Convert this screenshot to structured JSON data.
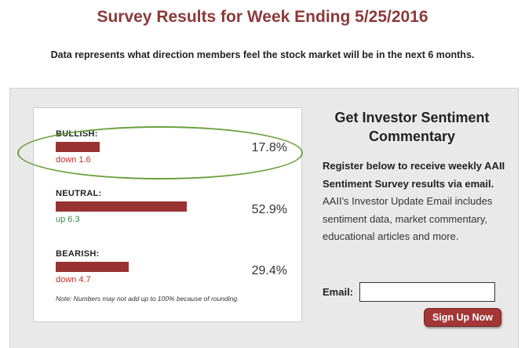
{
  "header": {
    "title": "Survey Results for Week Ending 5/25/2016",
    "subtitle": "Data represents what direction members feel the stock market will be in the next 6 months."
  },
  "results": [
    {
      "label": "BULLISH:",
      "percent_text": "17.8%",
      "value": 17.8,
      "change": "down 1.6",
      "direction": "down"
    },
    {
      "label": "NEUTRAL:",
      "percent_text": "52.9%",
      "value": 52.9,
      "change": "up 6.3",
      "direction": "up"
    },
    {
      "label": "BEARISH:",
      "percent_text": "29.4%",
      "value": 29.4,
      "change": "down 4.7",
      "direction": "down"
    }
  ],
  "note": "Note: Numbers may not add up to 100% because of rounding.",
  "sidebar": {
    "title": "Get Investor Sentiment Commentary",
    "text_bold": "Register below to receive weekly AAII Sentiment Survey results via email.",
    "text_rest": " AAII's Investor Update Email includes sentiment data, market commentary, educational articles and more.",
    "email_label": "Email:",
    "email_value": "",
    "signup_label": "Sign Up Now"
  },
  "colors": {
    "title": "#8b3a3a",
    "bar": "#993333",
    "down": "#cc2a2a",
    "up": "#2e8b3a",
    "highlight": "#6aa03e",
    "button": "#a33636"
  }
}
